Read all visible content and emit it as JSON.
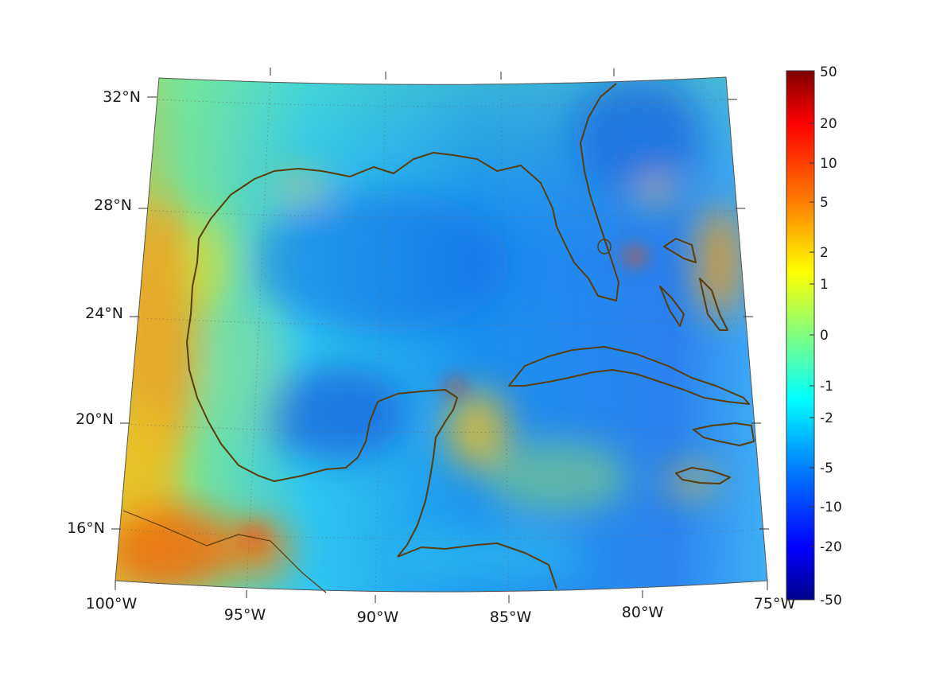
{
  "map": {
    "projection": "conic",
    "longitude_labels": [
      "100°W",
      "95°W",
      "90°W",
      "85°W",
      "80°W",
      "75°W"
    ],
    "latitude_labels": [
      "16°N",
      "20°N",
      "24°N",
      "28°N",
      "32°N"
    ],
    "coastline_color": "#5a3d0a",
    "graticule": "dotted"
  },
  "colorbar": {
    "colormap": "jet",
    "tick_labels": [
      "50",
      "20",
      "10",
      "5",
      "2",
      "1",
      "0",
      "-1",
      "-2",
      "-5",
      "-10",
      "-20",
      "-50"
    ],
    "range": [
      -50,
      50
    ],
    "colors": [
      "#00008b",
      "#0000ff",
      "#0080ff",
      "#00ffff",
      "#80ff80",
      "#ffff00",
      "#ff8000",
      "#ff0000",
      "#800000"
    ]
  }
}
